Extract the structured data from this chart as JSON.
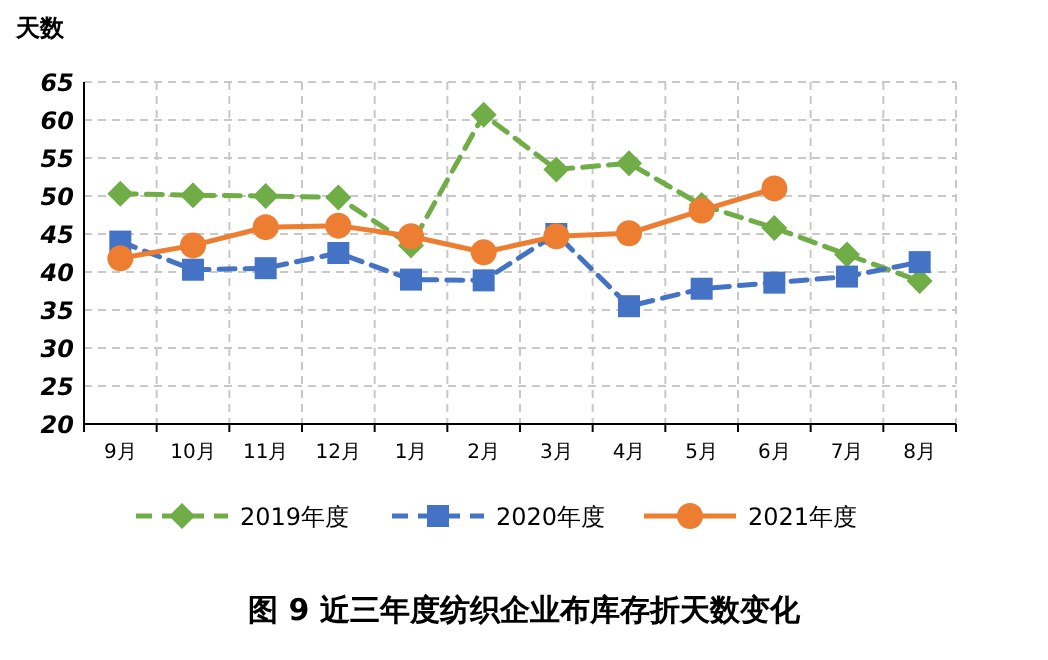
{
  "chart_data": {
    "type": "line",
    "title": "图 9    近三年度纺织企业布库存折天数变化",
    "ylabel": "天数",
    "categories": [
      "9月",
      "10月",
      "11月",
      "12月",
      "1月",
      "2月",
      "3月",
      "4月",
      "5月",
      "6月",
      "7月",
      "8月"
    ],
    "series": [
      {
        "name": "2019年度",
        "color": "#70ad47",
        "marker": "diamond",
        "line_style": "dashed",
        "values": [
          50.3,
          50.1,
          50.0,
          49.8,
          43.5,
          60.7,
          53.5,
          54.3,
          48.8,
          45.8,
          42.3,
          38.8
        ]
      },
      {
        "name": "2020年度",
        "color": "#4472c4",
        "marker": "square",
        "line_style": "dashed",
        "values": [
          44.0,
          40.3,
          40.5,
          42.5,
          39.0,
          38.9,
          45.0,
          35.5,
          37.8,
          38.6,
          39.4,
          41.3
        ]
      },
      {
        "name": "2021年度",
        "color": "#ed7d31",
        "marker": "circle",
        "line_style": "solid",
        "values": [
          41.8,
          43.5,
          45.9,
          46.1,
          44.7,
          42.6,
          44.7,
          45.1,
          48.1,
          51.0,
          null,
          null
        ]
      }
    ],
    "ylim": [
      20,
      65
    ],
    "yticks": [
      20,
      25,
      30,
      35,
      40,
      45,
      50,
      55,
      60,
      65
    ],
    "grid": true,
    "legend": "bottom"
  }
}
